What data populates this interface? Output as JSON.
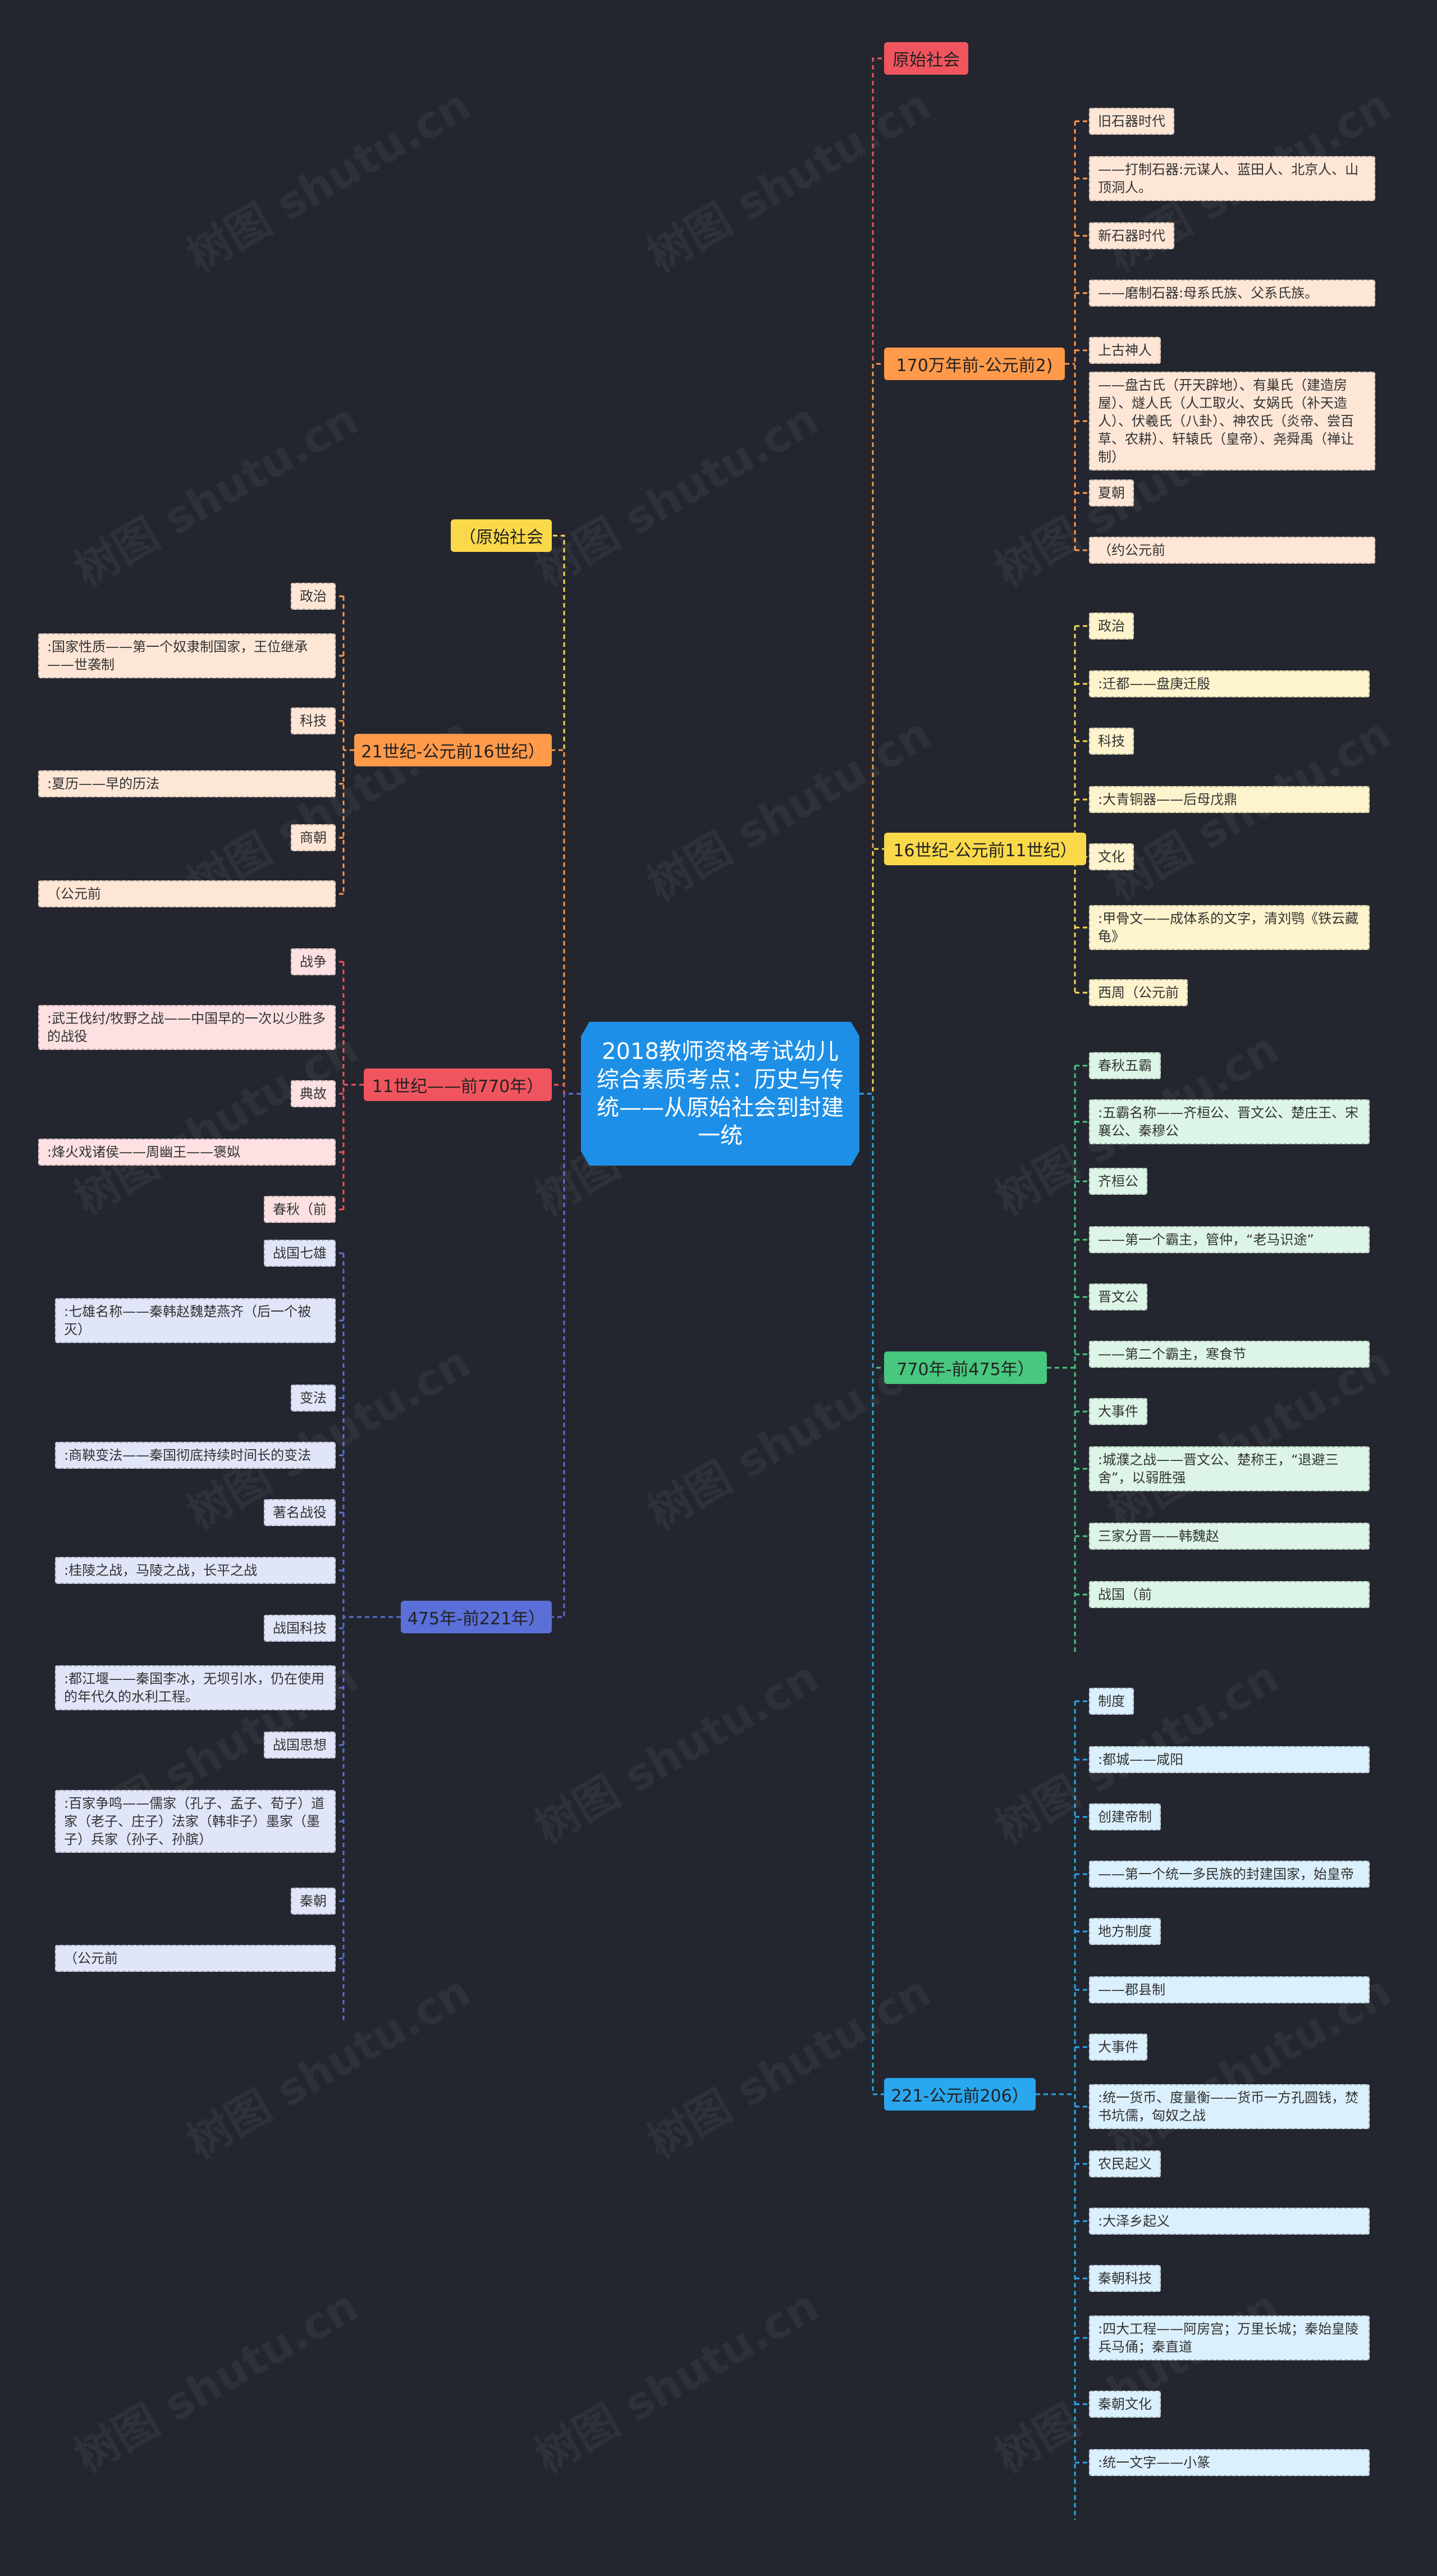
{
  "colors": {
    "background": "#24262f",
    "center": "#1e8fe6",
    "red": "#f0555f",
    "orange": "#ff9a4a",
    "yellow": "#f9d94a",
    "green": "#48c77e",
    "blue": "#2aa7ee",
    "indigo": "#5a6fd8"
  },
  "center": {
    "title": "2018教师资格考试幼儿综合素质考点：历史与传统——从原始社会到封建一统"
  },
  "right": [
    {
      "label": "原始社会",
      "children": []
    },
    {
      "label": "170万年前-公元前2)",
      "children": [
        "旧石器时代",
        "——打制石器:元谋人、蓝田人、北京人、山顶洞人。",
        "新石器时代",
        "——磨制石器:母系氏族、父系氏族。",
        "上古神人",
        "——盘古氏（开天辟地）、有巢氏（建造房屋）、燧人氏（人工取火、女娲氏（补天造人）、伏羲氏（八卦）、神农氏（炎帝、尝百草、农耕）、轩辕氏（皇帝）、尧舜禹（禅让制）",
        "夏朝",
        "（约公元前"
      ]
    },
    {
      "label": "16世纪-公元前11世纪）",
      "children": [
        "政治",
        ":迁都——盘庚迁殷",
        "科技",
        ":大青铜器——后母戊鼎",
        "文化",
        ":甲骨文——成体系的文字，清刘鹗《铁云藏龟》",
        "西周（公元前"
      ]
    },
    {
      "label": "770年-前475年）",
      "children": [
        "春秋五霸",
        ":五霸名称——齐桓公、晋文公、楚庄王、宋襄公、秦穆公",
        "齐桓公",
        "——第一个霸主，管仲，“老马识途”",
        "晋文公",
        "——第二个霸主，寒食节",
        "大事件",
        ":城濮之战——晋文公、楚称王，“退避三舍”，以弱胜强",
        "三家分晋——韩魏赵",
        "战国（前"
      ]
    },
    {
      "label": "221-公元前206）",
      "children": [
        "制度",
        ":都城——咸阳",
        "创建帝制",
        "——第一个统一多民族的封建国家，始皇帝",
        "地方制度",
        "——郡县制",
        "大事件",
        ":统一货币、度量衡——货币一方孔圆钱，焚书坑儒，匈奴之战",
        "农民起义",
        ":大泽乡起义",
        "秦朝科技",
        ":四大工程——阿房宫；万里长城；秦始皇陵兵马俑；秦直道",
        "秦朝文化",
        ":统一文字——小篆"
      ]
    }
  ],
  "left": [
    {
      "label": "（原始社会",
      "children": []
    },
    {
      "label": "21世纪-公元前16世纪）",
      "children": [
        "政治",
        ":国家性质——第一个奴隶制国家，王位继承——世袭制",
        "科技",
        ":夏历——早的历法",
        "商朝",
        "（公元前"
      ]
    },
    {
      "label": "11世纪——前770年）",
      "children": [
        "战争",
        ":武王伐纣/牧野之战——中国早的一次以少胜多的战役",
        "典故",
        ":烽火戏诸侯——周幽王——褒姒",
        "春秋（前"
      ]
    },
    {
      "label": "475年-前221年）",
      "children": [
        "战国七雄",
        ":七雄名称——秦韩赵魏楚燕齐（后一个被灭）",
        "变法",
        ":商鞅变法——秦国彻底持续时间长的变法",
        "著名战役",
        ":桂陵之战，马陵之战，长平之战",
        "战国科技",
        ":都江堰——秦国李冰，无坝引水，仍在使用的年代久的水利工程。",
        "战国思想",
        ":百家争鸣——儒家（孔子、孟子、荀子）道家（老子、庄子）法家（韩非子）墨家（墨子）兵家（孙子、孙膑）",
        "秦朝",
        "（公元前"
      ]
    }
  ],
  "watermark": "树图 shutu.cn"
}
